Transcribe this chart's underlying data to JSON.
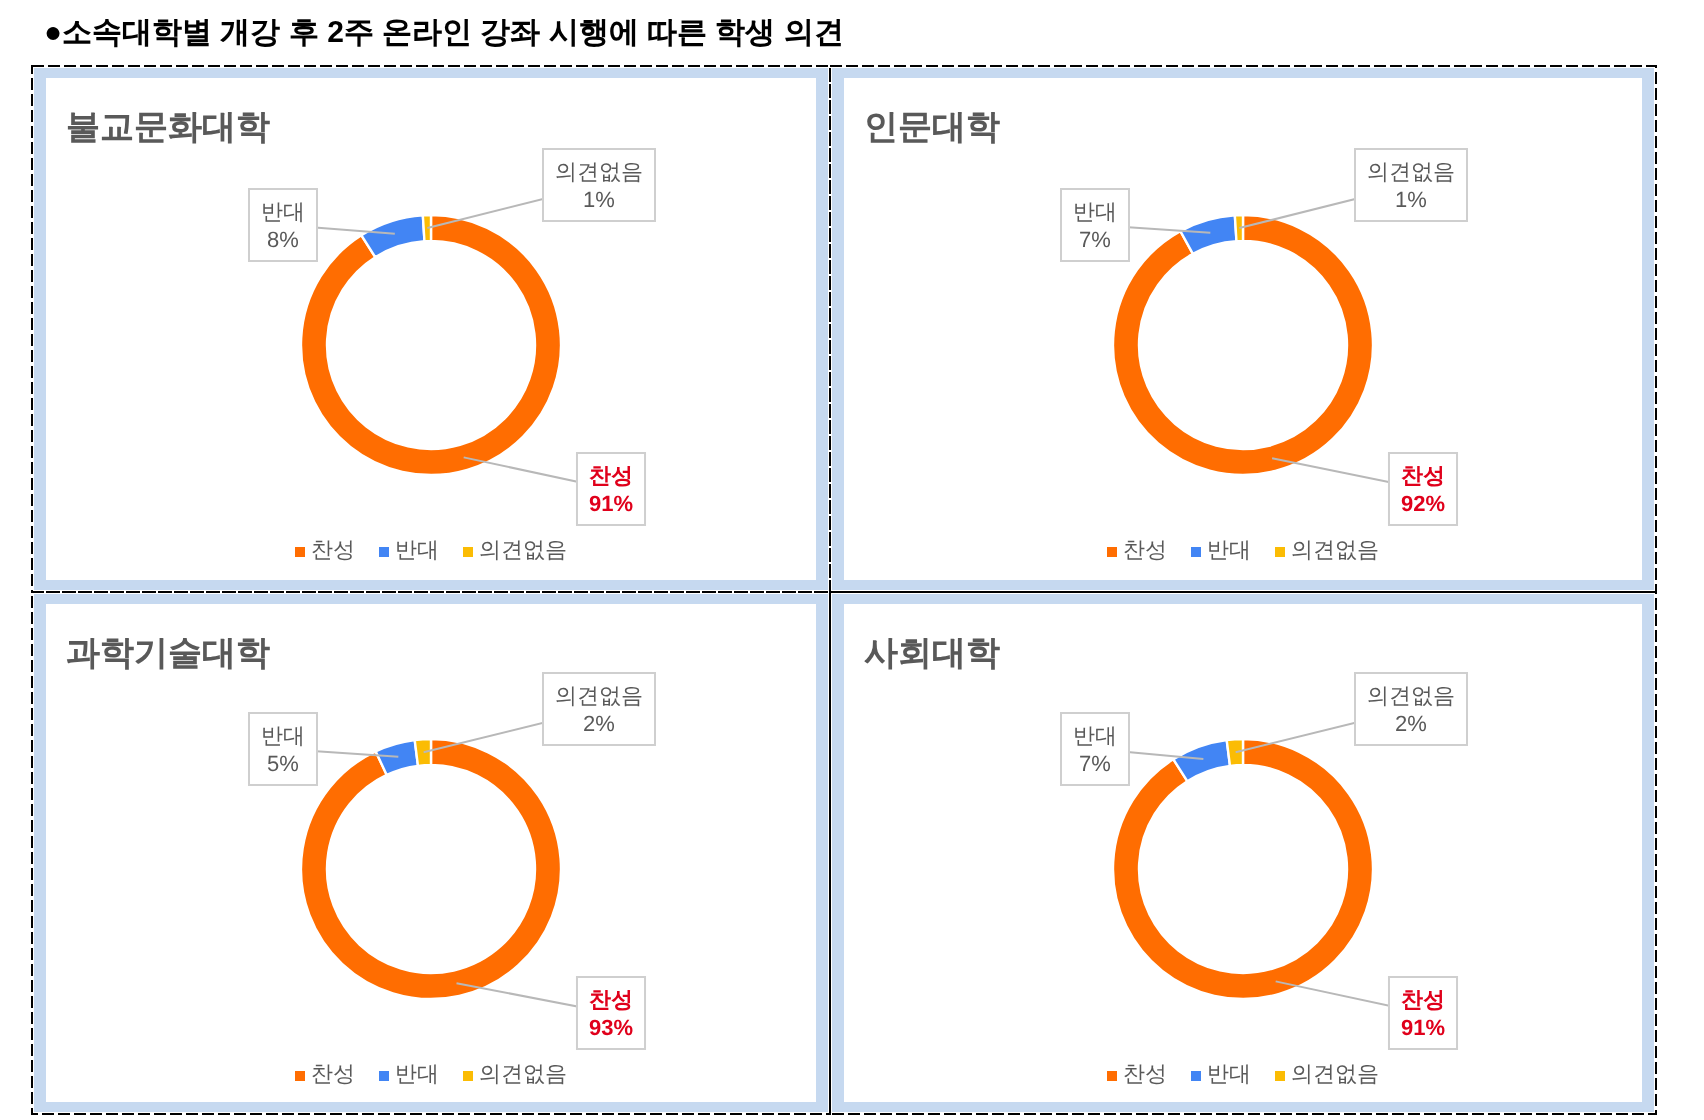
{
  "chart_data": [
    {
      "type": "other",
      "title": "●소속대학별 개강 후 2주 온라인 강좌 시행에 따른 학생 의견"
    },
    {
      "type": "donut",
      "title": "불교문화대학",
      "categories": [
        "찬성",
        "반대",
        "의견없음"
      ],
      "values": [
        91,
        8,
        1
      ],
      "value_labels": [
        "91%",
        "8%",
        "1%"
      ],
      "colors": [
        "#ff6d01",
        "#4285f4",
        "#fbbc04"
      ],
      "legend": "bottom"
    },
    {
      "type": "donut",
      "title": "인문대학",
      "categories": [
        "찬성",
        "반대",
        "의견없음"
      ],
      "values": [
        92,
        7,
        1
      ],
      "value_labels": [
        "92%",
        "7%",
        "1%"
      ],
      "colors": [
        "#ff6d01",
        "#4285f4",
        "#fbbc04"
      ],
      "legend": "bottom"
    },
    {
      "type": "donut",
      "title": "과학기술대학",
      "categories": [
        "찬성",
        "반대",
        "의견없음"
      ],
      "values": [
        93,
        5,
        2
      ],
      "value_labels": [
        "93%",
        "5%",
        "2%"
      ],
      "colors": [
        "#ff6d01",
        "#4285f4",
        "#fbbc04"
      ],
      "legend": "bottom"
    },
    {
      "type": "donut",
      "title": "사회대학",
      "categories": [
        "찬성",
        "반대",
        "의견없음"
      ],
      "values": [
        91,
        7,
        2
      ],
      "value_labels": [
        "91%",
        "7%",
        "2%"
      ],
      "colors": [
        "#ff6d01",
        "#4285f4",
        "#fbbc04"
      ],
      "legend": "bottom"
    }
  ]
}
